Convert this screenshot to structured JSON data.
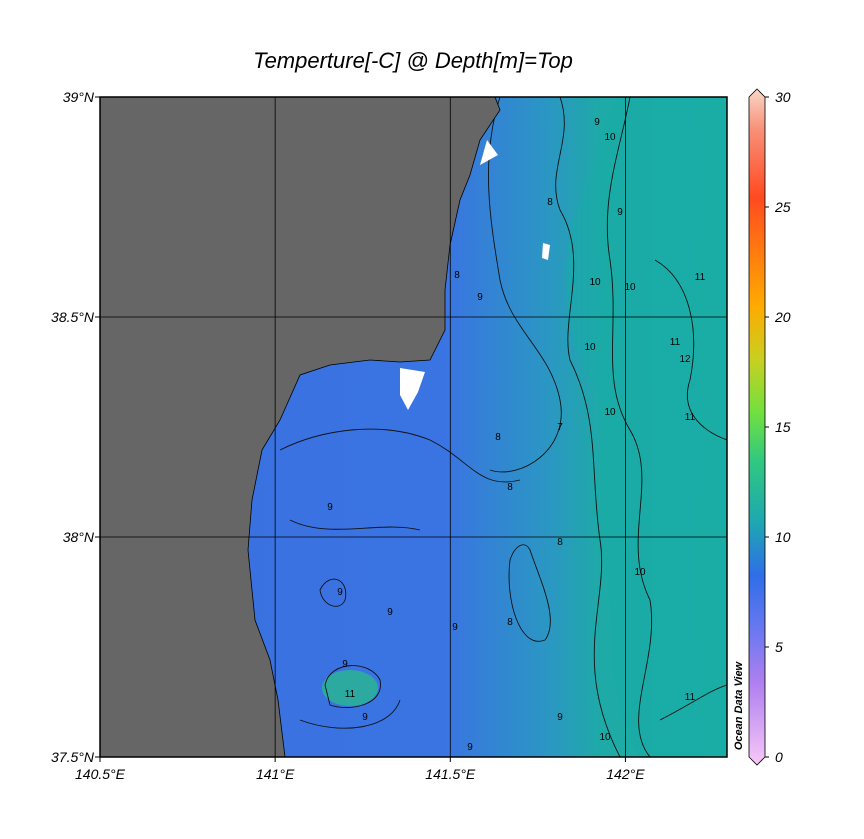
{
  "map": {
    "title": "Temperture[-C] @ Depth[m]=Top",
    "xlim": [
      140.5,
      142.29
    ],
    "ylim": [
      37.5,
      39
    ],
    "xticks": [
      {
        "value": 140.5,
        "label": "140.5°E"
      },
      {
        "value": 141,
        "label": "141°E"
      },
      {
        "value": 141.5,
        "label": "141.5°E"
      },
      {
        "value": 142,
        "label": "142°E"
      }
    ],
    "yticks": [
      {
        "value": 37.5,
        "label": "37.5°N"
      },
      {
        "value": 38,
        "label": "38°N"
      },
      {
        "value": 38.5,
        "label": "38.5°N"
      },
      {
        "value": 39,
        "label": "39°N"
      }
    ],
    "grid": true,
    "colorbar": {
      "lim": [
        0,
        30
      ],
      "ticks": [
        0,
        5,
        10,
        15,
        20,
        25,
        30
      ]
    },
    "contour_labels": [
      10,
      9,
      8,
      9,
      10,
      10,
      11,
      11,
      12,
      11,
      10,
      10,
      7,
      9,
      8,
      8,
      8,
      8,
      9,
      9,
      9,
      9,
      8,
      10,
      9,
      11,
      9,
      9,
      10,
      11,
      9
    ],
    "credit": "Ocean Data View"
  }
}
